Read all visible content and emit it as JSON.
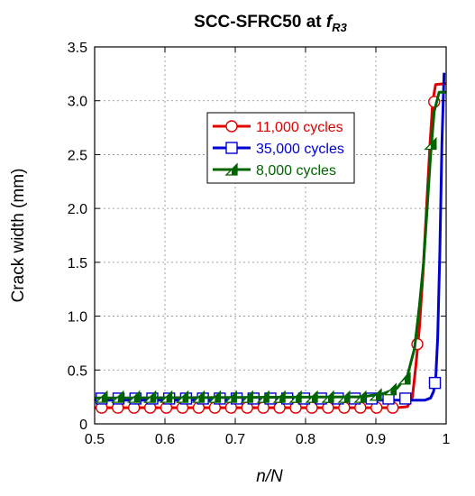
{
  "chart_data": {
    "type": "line",
    "title": "SCC-SFRC50 at ",
    "title_italic": "f",
    "title_subscript": "R3",
    "xlabel": "n/N",
    "ylabel": "Crack width (mm)",
    "xlim": [
      0.5,
      1.0
    ],
    "ylim": [
      0,
      3.5
    ],
    "x_ticks": [
      0.5,
      0.6,
      0.7,
      0.8,
      0.9,
      1.0
    ],
    "x_tick_labels": [
      "0.5",
      "0.6",
      "0.7",
      "0.8",
      "0.9",
      "1"
    ],
    "y_ticks": [
      0,
      0.5,
      1.0,
      1.5,
      2.0,
      2.5,
      3.0,
      3.5
    ],
    "y_tick_labels": [
      "0",
      "0.5",
      "1.0",
      "1.5",
      "2.0",
      "2.5",
      "3.0",
      "3.5"
    ],
    "grid": true,
    "legend_position": "upper-center",
    "series": [
      {
        "name": "11,000 cycles",
        "color": "#e00000",
        "marker": "circle",
        "line": [
          [
            0.5,
            0.15
          ],
          [
            0.93,
            0.15
          ],
          [
            0.945,
            0.16
          ],
          [
            0.952,
            0.25
          ],
          [
            0.957,
            0.55
          ],
          [
            0.962,
            0.9
          ],
          [
            0.967,
            1.4
          ],
          [
            0.972,
            2.0
          ],
          [
            0.977,
            2.6
          ],
          [
            0.981,
            3.0
          ],
          [
            0.985,
            3.15
          ],
          [
            1.0,
            3.16
          ]
        ],
        "markers": [
          [
            0.51,
            0.15
          ],
          [
            0.533,
            0.15
          ],
          [
            0.556,
            0.15
          ],
          [
            0.579,
            0.15
          ],
          [
            0.602,
            0.15
          ],
          [
            0.625,
            0.15
          ],
          [
            0.648,
            0.15
          ],
          [
            0.671,
            0.15
          ],
          [
            0.694,
            0.15
          ],
          [
            0.717,
            0.15
          ],
          [
            0.74,
            0.15
          ],
          [
            0.763,
            0.15
          ],
          [
            0.786,
            0.15
          ],
          [
            0.809,
            0.15
          ],
          [
            0.832,
            0.15
          ],
          [
            0.855,
            0.15
          ],
          [
            0.878,
            0.15
          ],
          [
            0.901,
            0.15
          ],
          [
            0.924,
            0.15
          ],
          [
            0.959,
            0.74
          ],
          [
            0.983,
            2.99
          ]
        ]
      },
      {
        "name": "35,000 cycles",
        "color": "#0000d0",
        "marker": "square",
        "line": [
          [
            0.5,
            0.22
          ],
          [
            0.97,
            0.22
          ],
          [
            0.978,
            0.24
          ],
          [
            0.982,
            0.3
          ],
          [
            0.985,
            0.4
          ],
          [
            0.988,
            0.8
          ],
          [
            0.991,
            1.6
          ],
          [
            0.994,
            2.6
          ],
          [
            0.997,
            3.26
          ]
        ],
        "markers": [
          [
            0.51,
            0.235
          ],
          [
            0.534,
            0.235
          ],
          [
            0.558,
            0.235
          ],
          [
            0.582,
            0.235
          ],
          [
            0.606,
            0.235
          ],
          [
            0.63,
            0.235
          ],
          [
            0.654,
            0.235
          ],
          [
            0.678,
            0.235
          ],
          [
            0.702,
            0.235
          ],
          [
            0.726,
            0.235
          ],
          [
            0.75,
            0.235
          ],
          [
            0.774,
            0.235
          ],
          [
            0.798,
            0.235
          ],
          [
            0.822,
            0.235
          ],
          [
            0.846,
            0.235
          ],
          [
            0.87,
            0.235
          ],
          [
            0.894,
            0.235
          ],
          [
            0.918,
            0.235
          ],
          [
            0.942,
            0.235
          ],
          [
            0.984,
            0.38
          ]
        ]
      },
      {
        "name": "8,000 cycles",
        "color": "#006400",
        "marker": "half-triangle",
        "line": [
          [
            0.5,
            0.24
          ],
          [
            0.88,
            0.25
          ],
          [
            0.91,
            0.28
          ],
          [
            0.93,
            0.33
          ],
          [
            0.945,
            0.45
          ],
          [
            0.955,
            0.7
          ],
          [
            0.962,
            1.1
          ],
          [
            0.968,
            1.5
          ],
          [
            0.973,
            2.0
          ],
          [
            0.978,
            2.5
          ],
          [
            0.983,
            2.9
          ],
          [
            0.99,
            3.08
          ],
          [
            1.0,
            3.08
          ]
        ],
        "markers": [
          [
            0.51,
            0.25
          ],
          [
            0.533,
            0.25
          ],
          [
            0.556,
            0.25
          ],
          [
            0.579,
            0.25
          ],
          [
            0.602,
            0.25
          ],
          [
            0.625,
            0.25
          ],
          [
            0.648,
            0.25
          ],
          [
            0.671,
            0.25
          ],
          [
            0.694,
            0.25
          ],
          [
            0.717,
            0.25
          ],
          [
            0.74,
            0.25
          ],
          [
            0.763,
            0.25
          ],
          [
            0.786,
            0.25
          ],
          [
            0.809,
            0.25
          ],
          [
            0.832,
            0.25
          ],
          [
            0.855,
            0.25
          ],
          [
            0.878,
            0.25
          ],
          [
            0.9,
            0.27
          ],
          [
            0.921,
            0.32
          ],
          [
            0.941,
            0.42
          ],
          [
            0.978,
            2.6
          ]
        ]
      }
    ]
  }
}
